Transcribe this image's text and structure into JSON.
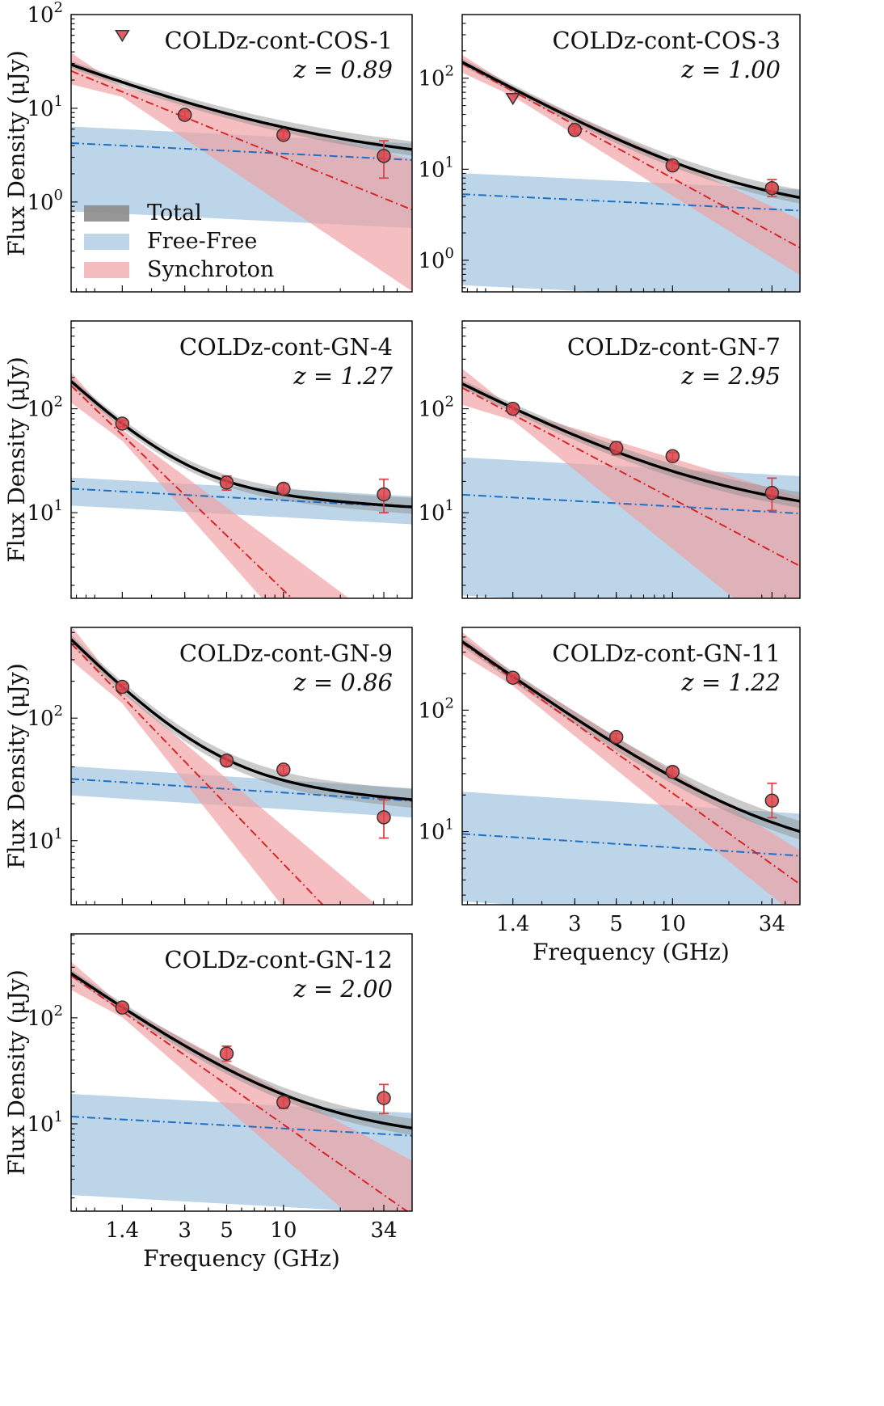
{
  "figure": {
    "xlabel": "Frequency (GHz)",
    "ylabel": "Flux Density (μJy)",
    "x_tick_labels": [
      "1.4",
      "3",
      "5",
      "10",
      "34"
    ],
    "colors": {
      "total_line": "#000000",
      "total_band": "#8c8c8c",
      "freefree_line": "#1f6fc4",
      "freefree_band": "#a9c9e2",
      "synchrotron_line": "#d62728",
      "synchrotron_band": "#f0a0a4",
      "marker_face": "#d9434a",
      "marker_edge": "#333333",
      "errorbar": "#d9434a"
    },
    "legend": {
      "placement": "lower-left of first panel",
      "items": [
        {
          "label": "Total",
          "key": "total"
        },
        {
          "label": "Free-Free",
          "key": "freefree"
        },
        {
          "label": "Synchroton",
          "key": "synchrotron"
        }
      ]
    }
  },
  "chart_data": [
    {
      "type": "line",
      "name": "COLDz-cont-COS-1",
      "redshift_label": "z = 0.89",
      "xscale": "log",
      "yscale": "log",
      "xlim": [
        0.75,
        48
      ],
      "ylim": [
        0.11,
        100
      ],
      "y_ticks": [
        1,
        10,
        100
      ],
      "detections": [
        {
          "freq": 3,
          "flux": 8.5,
          "err_lo": 0.8,
          "err_hi": 0.8
        },
        {
          "freq": 10,
          "flux": 5.2,
          "err_lo": 0.5,
          "err_hi": 0.5
        },
        {
          "freq": 34,
          "flux": 3.1,
          "err_lo": 1.3,
          "err_hi": 1.4
        }
      ],
      "upper_limits": [
        {
          "freq": 1.4,
          "flux": 60
        }
      ],
      "model": {
        "freefree_ref": 4.0,
        "freefree_band": [
          0.75,
          6.0
        ],
        "synchrotron_ref": 15,
        "synchrotron_index": -0.82,
        "synchrotron_index_range": [
          -0.5,
          -1.35
        ]
      }
    },
    {
      "type": "line",
      "name": "COLDz-cont-COS-3",
      "redshift_label": "z = 1.00",
      "xscale": "log",
      "yscale": "log",
      "xlim": [
        0.75,
        48
      ],
      "ylim": [
        0.45,
        500
      ],
      "y_ticks": [
        1,
        10,
        100
      ],
      "detections": [
        {
          "freq": 3,
          "flux": 27,
          "err_lo": 2.5,
          "err_hi": 2.5
        },
        {
          "freq": 10,
          "flux": 11,
          "err_lo": 1.0,
          "err_hi": 1.0
        },
        {
          "freq": 34,
          "flux": 6.2,
          "err_lo": 1.2,
          "err_hi": 1.5
        }
      ],
      "upper_limits": [
        {
          "freq": 1.4,
          "flux": 60
        }
      ],
      "model": {
        "freefree_ref": 5.0,
        "freefree_band": [
          0.5,
          8.5
        ],
        "synchrotron_ref": 72,
        "synchrotron_index": -1.12,
        "synchrotron_index_range": [
          -0.95,
          -1.28
        ]
      }
    },
    {
      "type": "line",
      "name": "COLDz-cont-GN-4",
      "redshift_label": "z = 1.27",
      "xscale": "log",
      "yscale": "log",
      "xlim": [
        0.75,
        48
      ],
      "ylim": [
        1.5,
        700
      ],
      "y_ticks": [
        10,
        100
      ],
      "detections": [
        {
          "freq": 1.4,
          "flux": 72,
          "err_lo": 5,
          "err_hi": 5
        },
        {
          "freq": 5,
          "flux": 19.5,
          "err_lo": 3,
          "err_hi": 3
        },
        {
          "freq": 10,
          "flux": 17,
          "err_lo": 2,
          "err_hi": 2
        },
        {
          "freq": 34,
          "flux": 15,
          "err_lo": 5,
          "err_hi": 6
        }
      ],
      "upper_limits": [],
      "model": {
        "freefree_ref": 16,
        "freefree_band": [
          11,
          20.5
        ],
        "synchrotron_ref": 56,
        "synchrotron_index": -1.75,
        "synchrotron_index_range": [
          -1.35,
          -2.05
        ]
      }
    },
    {
      "type": "line",
      "name": "COLDz-cont-GN-7",
      "redshift_label": "z = 2.95",
      "xscale": "log",
      "yscale": "log",
      "xlim": [
        0.75,
        48
      ],
      "ylim": [
        1.5,
        700
      ],
      "y_ticks": [
        10,
        100
      ],
      "detections": [
        {
          "freq": 1.4,
          "flux": 100,
          "err_lo": 8,
          "err_hi": 8
        },
        {
          "freq": 5,
          "flux": 42,
          "err_lo": 6,
          "err_hi": 6
        },
        {
          "freq": 10,
          "flux": 35,
          "err_lo": 3,
          "err_hi": 3
        },
        {
          "freq": 34,
          "flux": 15.5,
          "err_lo": 5,
          "err_hi": 6
        }
      ],
      "upper_limits": [],
      "model": {
        "freefree_ref": 14,
        "freefree_band": [
          1.5,
          32
        ],
        "synchrotron_ref": 88,
        "synchrotron_index": -0.95,
        "synchrotron_index_range": [
          -0.55,
          -1.45
        ]
      }
    },
    {
      "type": "line",
      "name": "COLDz-cont-GN-9",
      "redshift_label": "z = 0.86",
      "xscale": "log",
      "yscale": "log",
      "xlim": [
        0.75,
        48
      ],
      "ylim": [
        3.0,
        550
      ],
      "y_ticks": [
        10,
        100
      ],
      "detections": [
        {
          "freq": 1.4,
          "flux": 180,
          "err_lo": 10,
          "err_hi": 10
        },
        {
          "freq": 5,
          "flux": 45,
          "err_lo": 4,
          "err_hi": 4
        },
        {
          "freq": 10,
          "flux": 38,
          "err_lo": 3,
          "err_hi": 3
        },
        {
          "freq": 34,
          "flux": 15.5,
          "err_lo": 5,
          "err_hi": 6
        }
      ],
      "upper_limits": [],
      "model": {
        "freefree_ref": 30,
        "freefree_band": [
          22,
          38
        ],
        "synchrotron_ref": 150,
        "synchrotron_index": -1.6,
        "synchrotron_index_range": [
          -1.3,
          -1.95
        ]
      }
    },
    {
      "type": "line",
      "name": "COLDz-cont-GN-11",
      "redshift_label": "z = 1.22",
      "xscale": "log",
      "yscale": "log",
      "xlim": [
        0.75,
        48
      ],
      "ylim": [
        2.5,
        480
      ],
      "y_ticks": [
        10,
        100
      ],
      "detections": [
        {
          "freq": 1.4,
          "flux": 185,
          "err_lo": 10,
          "err_hi": 10
        },
        {
          "freq": 5,
          "flux": 60,
          "err_lo": 4,
          "err_hi": 4
        },
        {
          "freq": 10,
          "flux": 31,
          "err_lo": 3,
          "err_hi": 3
        },
        {
          "freq": 34,
          "flux": 18,
          "err_lo": 5,
          "err_hi": 7
        }
      ],
      "upper_limits": [],
      "model": {
        "freefree_ref": 9.0,
        "freefree_band": [
          2.5,
          20
        ],
        "synchrotron_ref": 180,
        "synchrotron_index": -1.1,
        "synchrotron_index_range": [
          -0.95,
          -1.25
        ]
      }
    },
    {
      "type": "line",
      "name": "COLDz-cont-GN-12",
      "redshift_label": "z = 2.00",
      "xscale": "log",
      "yscale": "log",
      "xlim": [
        0.75,
        48
      ],
      "ylim": [
        1.5,
        620
      ],
      "y_ticks": [
        10,
        100
      ],
      "detections": [
        {
          "freq": 1.4,
          "flux": 125,
          "err_lo": 8,
          "err_hi": 8
        },
        {
          "freq": 5,
          "flux": 46,
          "err_lo": 7,
          "err_hi": 8
        },
        {
          "freq": 10,
          "flux": 16,
          "err_lo": 2,
          "err_hi": 2
        },
        {
          "freq": 34,
          "flux": 17.5,
          "err_lo": 5,
          "err_hi": 6
        }
      ],
      "upper_limits": [],
      "model": {
        "freefree_ref": 11,
        "freefree_band": [
          2.0,
          18
        ],
        "synchrotron_ref": 115,
        "synchrotron_index": -1.25,
        "synchrotron_index_range": [
          -0.95,
          -1.55
        ]
      }
    }
  ]
}
